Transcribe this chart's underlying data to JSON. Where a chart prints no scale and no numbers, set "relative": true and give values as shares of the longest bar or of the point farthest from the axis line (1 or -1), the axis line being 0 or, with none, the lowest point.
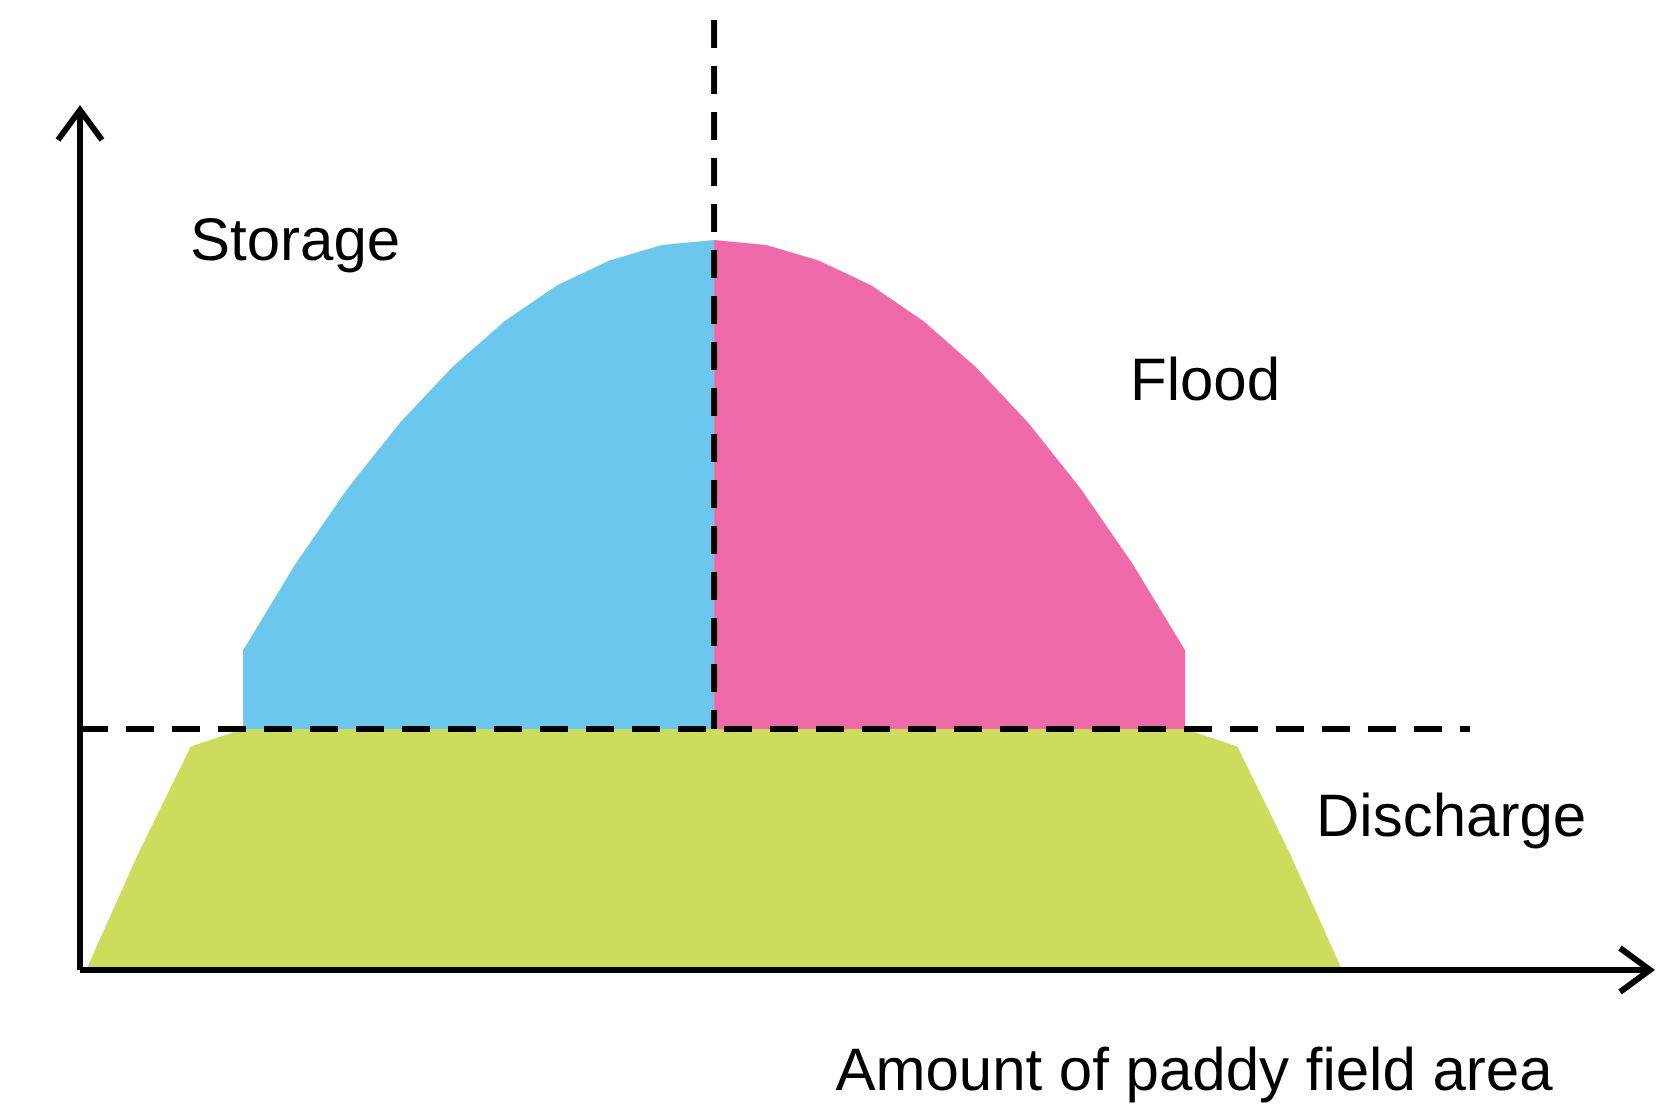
{
  "chart_data": {
    "type": "area",
    "relative": true,
    "xlabel": "Amount of paddy field area",
    "legend": false,
    "grid": false,
    "categories": [
      null,
      null,
      null,
      null,
      null,
      null,
      null,
      null,
      null,
      null,
      null,
      null,
      null,
      null,
      null,
      null,
      null,
      null,
      null,
      null,
      null,
      null,
      null,
      null,
      null,
      null,
      null,
      null,
      null,
      null
    ],
    "series": [
      {
        "name": "Storage",
        "color": "#6cc7ef",
        "values": [
          null,
          null,
          null,
          0.438,
          0.556,
          0.66,
          0.75,
          0.826,
          0.889,
          0.938,
          0.972,
          0.993,
          1,
          null,
          null,
          null,
          null,
          null,
          null,
          null,
          null,
          null,
          null,
          null,
          null,
          null,
          null,
          null,
          null,
          null
        ]
      },
      {
        "name": "Flood",
        "color": "#ef6aa8",
        "values": [
          null,
          null,
          null,
          null,
          null,
          null,
          null,
          null,
          null,
          null,
          null,
          null,
          1,
          0.993,
          0.972,
          0.938,
          0.889,
          0.826,
          0.75,
          0.66,
          0.556,
          0.438,
          null,
          null,
          null,
          null,
          null,
          null,
          null,
          null
        ]
      },
      {
        "name": "Discharge",
        "color": "#cddc5c",
        "values": [
          0,
          0.16,
          0.306,
          0.33,
          0.33,
          0.33,
          0.33,
          0.33,
          0.33,
          0.33,
          0.33,
          0.33,
          0.33,
          0.33,
          0.33,
          0.33,
          0.33,
          0.33,
          0.33,
          0.33,
          0.33,
          0.33,
          0.306,
          0.16,
          0,
          null,
          null,
          null,
          null,
          null
        ]
      }
    ],
    "ref_lines": [
      {
        "axis": "y",
        "value": 0.33,
        "line_style": "dashed",
        "color": "#000000"
      }
    ]
  }
}
